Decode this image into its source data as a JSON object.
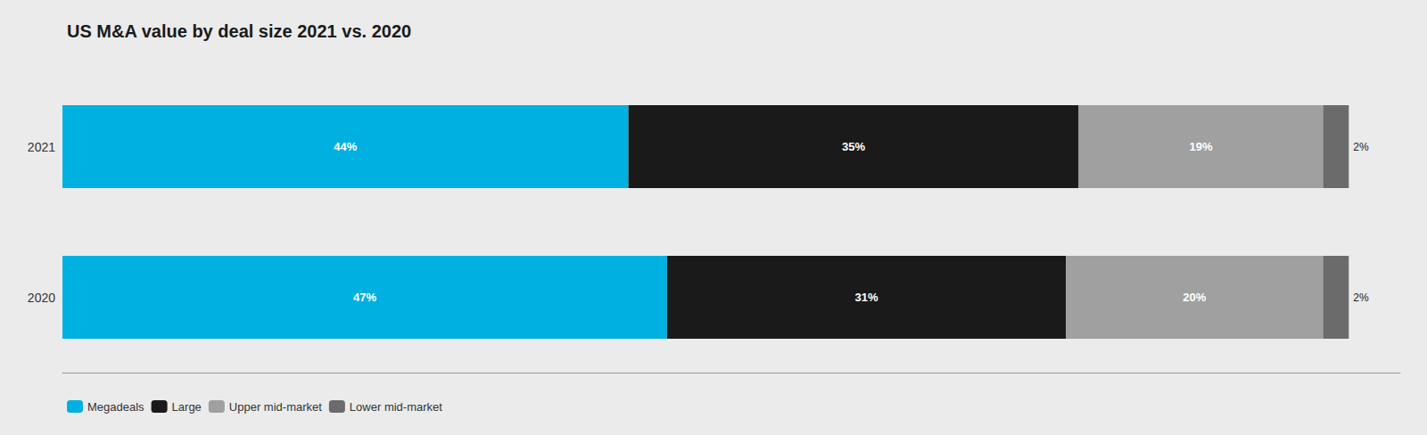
{
  "chart_data": {
    "type": "bar",
    "orientation": "horizontal",
    "stacked": true,
    "title": "US M&A value by deal size 2021 vs. 2020",
    "categories": [
      "2021",
      "2020"
    ],
    "series": [
      {
        "name": "Megadeals",
        "color": "#00B0E0",
        "values": [
          44,
          47
        ],
        "value_labels": [
          "44%",
          "47%"
        ]
      },
      {
        "name": "Large",
        "color": "#1A1A1A",
        "values": [
          35,
          31
        ],
        "value_labels": [
          "35%",
          "31%"
        ]
      },
      {
        "name": "Upper mid-market",
        "color": "#A0A0A0",
        "values": [
          19,
          20
        ],
        "value_labels": [
          "19%",
          "20%"
        ]
      },
      {
        "name": "Lower mid-market",
        "color": "#6B6B6B",
        "values": [
          2,
          2
        ],
        "value_labels": [
          "2%",
          "2%"
        ]
      }
    ],
    "xlim": [
      0,
      104
    ],
    "data_labels": true,
    "tick_labels": "y",
    "grid": false,
    "legend": "bottom"
  }
}
